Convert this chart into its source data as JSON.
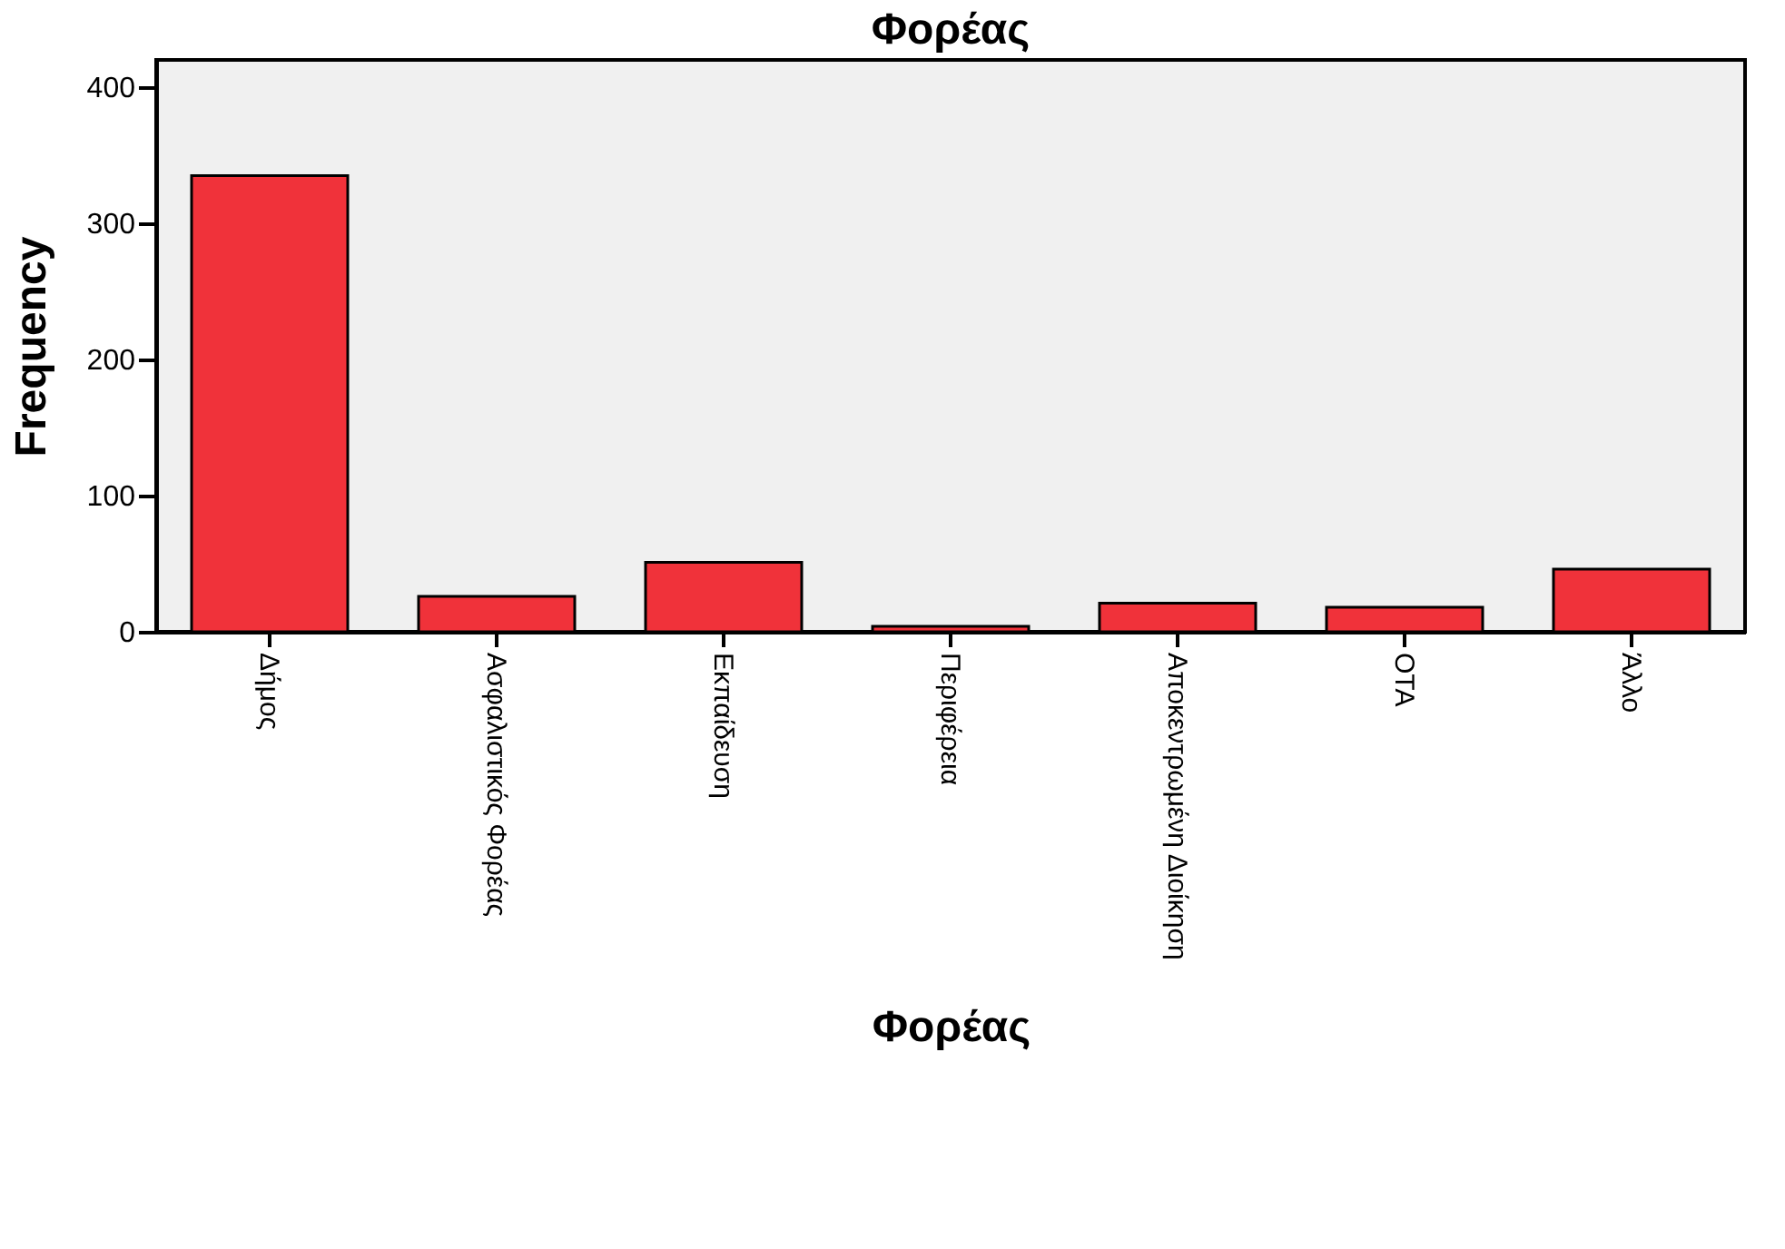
{
  "chart_data": {
    "type": "bar",
    "title": "Φορέας",
    "xlabel": "Φορέας",
    "ylabel": "Frequency",
    "categories": [
      "Δήμος",
      "Ασφαλιστικός Φορέας",
      "Εκπαίδευση",
      "Περιφέρεια",
      "Αποκεντρωμένη Διοίκηση",
      "ΟΤΑ",
      "Άλλο"
    ],
    "values": [
      335,
      26,
      51,
      4,
      21,
      18,
      46
    ],
    "color": "#f0323a",
    "ylim": [
      0,
      420
    ],
    "yticks": [
      0,
      100,
      200,
      300,
      400
    ],
    "grid": false
  }
}
